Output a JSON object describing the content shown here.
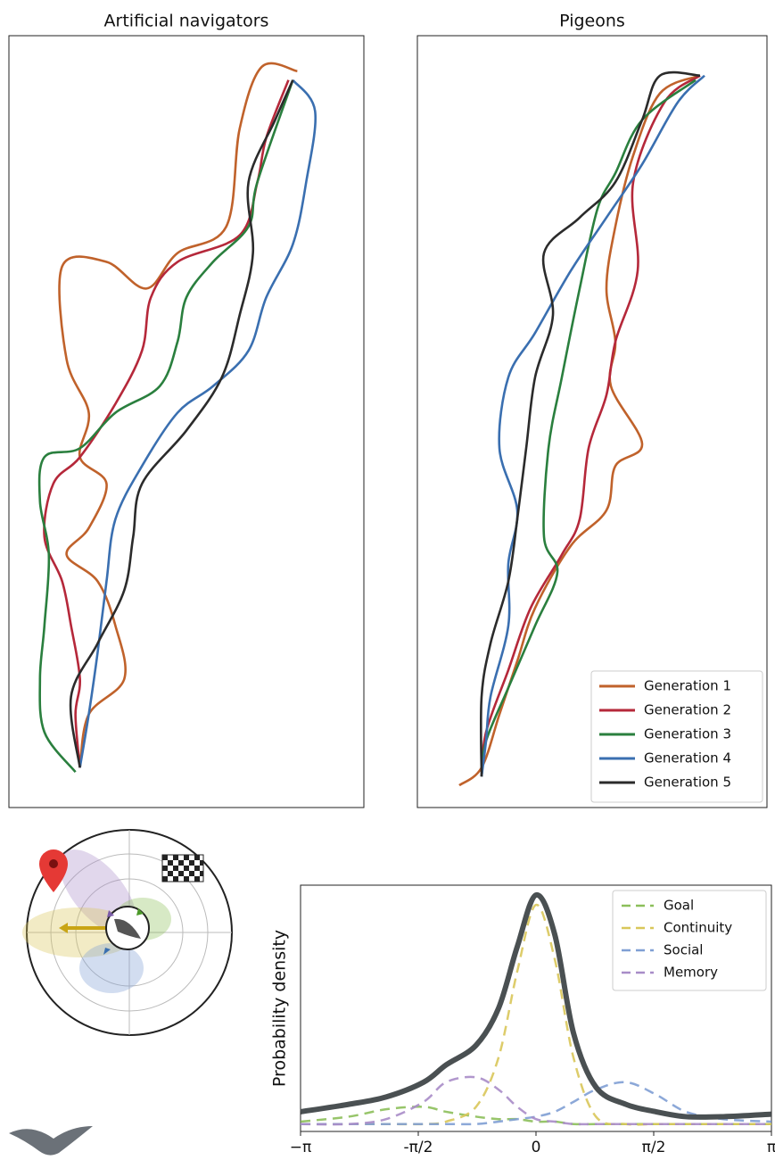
{
  "chart_data": [
    {
      "type": "line",
      "title": "Artificial navigators",
      "xlim": [
        0,
        400
      ],
      "ylim": [
        0,
        870
      ],
      "legend": false,
      "series": [
        {
          "color": "#c0622b",
          "x": [
            325,
            285,
            260,
            245,
            190,
            155,
            110,
            60,
            65,
            90,
            80,
            110,
            90,
            65,
            100,
            120,
            130,
            90,
            80
          ],
          "y": [
            830,
            835,
            765,
            655,
            625,
            585,
            615,
            610,
            505,
            445,
            395,
            365,
            315,
            285,
            255,
            205,
            145,
            105,
            45
          ]
        },
        {
          "color": "#b5283a",
          "x": [
            315,
            290,
            280,
            260,
            190,
            160,
            150,
            120,
            80,
            50,
            40,
            60,
            70,
            80,
            75,
            80
          ],
          "y": [
            820,
            755,
            705,
            645,
            615,
            575,
            515,
            455,
            395,
            365,
            305,
            255,
            205,
            145,
            105,
            45
          ]
        },
        {
          "color": "#2a7f3e",
          "x": [
            320,
            280,
            270,
            230,
            200,
            190,
            170,
            120,
            80,
            40,
            35,
            45,
            40,
            35,
            40,
            75
          ],
          "y": [
            820,
            705,
            655,
            615,
            575,
            525,
            475,
            445,
            405,
            395,
            345,
            285,
            205,
            145,
            85,
            40
          ]
        },
        {
          "color": "#3a6fb0",
          "x": [
            320,
            345,
            335,
            320,
            290,
            270,
            230,
            190,
            150,
            120,
            110,
            100,
            90,
            80
          ],
          "y": [
            820,
            785,
            705,
            635,
            575,
            515,
            475,
            445,
            385,
            325,
            255,
            175,
            105,
            45
          ]
        },
        {
          "color": "#2b2b2b",
          "x": [
            320,
            300,
            270,
            275,
            260,
            240,
            200,
            150,
            140,
            130,
            100,
            70,
            80
          ],
          "y": [
            820,
            775,
            705,
            625,
            555,
            485,
            425,
            365,
            305,
            245,
            185,
            125,
            45
          ]
        }
      ]
    },
    {
      "type": "line",
      "title": "Pigeons",
      "xlim": [
        0,
        392
      ],
      "ylim": [
        0,
        870
      ],
      "legend": "lower right",
      "series": [
        {
          "name": "Generation 1",
          "color": "#c0622b",
          "x": [
            317,
            272,
            242,
            222,
            212,
            222,
            217,
            252,
            222,
            212,
            172,
            132,
            112,
            92,
            72,
            47
          ],
          "y": [
            825,
            805,
            735,
            655,
            585,
            525,
            475,
            410,
            385,
            335,
            295,
            225,
            165,
            105,
            45,
            25
          ]
        },
        {
          "name": "Generation 2",
          "color": "#b5283a",
          "x": [
            317,
            277,
            242,
            247,
            222,
            212,
            192,
            182,
            162,
            127,
            102,
            77,
            72
          ],
          "y": [
            825,
            795,
            705,
            605,
            525,
            465,
            405,
            325,
            285,
            225,
            155,
            85,
            35
          ]
        },
        {
          "name": "Generation 3",
          "color": "#2a7f3e",
          "x": [
            312,
            252,
            222,
            202,
            182,
            162,
            147,
            142,
            157,
            132,
            102,
            77,
            72
          ],
          "y": [
            820,
            775,
            715,
            675,
            585,
            485,
            405,
            305,
            265,
            205,
            135,
            75,
            35
          ]
        },
        {
          "name": "Generation 4",
          "color": "#3a6fb0",
          "x": [
            322,
            292,
            252,
            212,
            172,
            132,
            102,
            92,
            112,
            102,
            102,
            82,
            77,
            72
          ],
          "y": [
            825,
            795,
            725,
            665,
            605,
            535,
            485,
            405,
            335,
            275,
            205,
            125,
            75,
            35
          ]
        },
        {
          "name": "Generation 5",
          "color": "#2b2b2b",
          "x": [
            317,
            272,
            252,
            222,
            182,
            142,
            152,
            132,
            122,
            112,
            102,
            82,
            72,
            72
          ],
          "y": [
            825,
            825,
            775,
            705,
            665,
            625,
            555,
            485,
            405,
            325,
            255,
            185,
            125,
            35
          ]
        }
      ]
    },
    {
      "type": "density",
      "y_label": "Probability density",
      "xlim": [
        -3.1416,
        3.1416
      ],
      "ylim": [
        0,
        1
      ],
      "legend": "upper right",
      "xticks": [
        {
          "value": -3.1416,
          "label": "−π"
        },
        {
          "value": -1.5708,
          "label": "-π/2"
        },
        0,
        {
          "value": 1.5708,
          "label": "π/2"
        },
        {
          "value": 3.1416,
          "label": "π"
        }
      ],
      "x": [
        -3.14,
        -2.5,
        -2,
        -1.5,
        -1.2,
        -0.8,
        -0.5,
        -0.25,
        0,
        0.25,
        0.5,
        0.8,
        1.2,
        1.6,
        2,
        2.5,
        3.14
      ],
      "total": {
        "color": "#4a5052",
        "values": [
          0.08,
          0.11,
          0.14,
          0.2,
          0.27,
          0.35,
          0.5,
          0.75,
          0.96,
          0.8,
          0.4,
          0.18,
          0.11,
          0.08,
          0.06,
          0.06,
          0.07
        ]
      },
      "series": [
        {
          "name": "Goal",
          "color": "#8cbf5a",
          "values": [
            0.04,
            0.06,
            0.09,
            0.1,
            0.08,
            0.06,
            0.05,
            0.05,
            0.04,
            0.04,
            0.03,
            0.03,
            0.03,
            0.03,
            0.03,
            0.03,
            0.03
          ]
        },
        {
          "name": "Continuity",
          "color": "#d9c75a",
          "values": [
            0.03,
            0.03,
            0.03,
            0.03,
            0.04,
            0.1,
            0.3,
            0.65,
            0.92,
            0.7,
            0.3,
            0.06,
            0.03,
            0.03,
            0.03,
            0.03,
            0.03
          ]
        },
        {
          "name": "Social",
          "color": "#7f9fd4",
          "values": [
            0.03,
            0.03,
            0.03,
            0.03,
            0.03,
            0.03,
            0.04,
            0.05,
            0.06,
            0.08,
            0.12,
            0.17,
            0.2,
            0.15,
            0.08,
            0.05,
            0.04
          ]
        },
        {
          "name": "Memory",
          "color": "#a88cc8",
          "values": [
            0.03,
            0.03,
            0.05,
            0.12,
            0.2,
            0.22,
            0.17,
            0.1,
            0.05,
            0.04,
            0.03,
            0.03,
            0.03,
            0.03,
            0.03,
            0.03,
            0.03
          ]
        }
      ]
    }
  ]
}
